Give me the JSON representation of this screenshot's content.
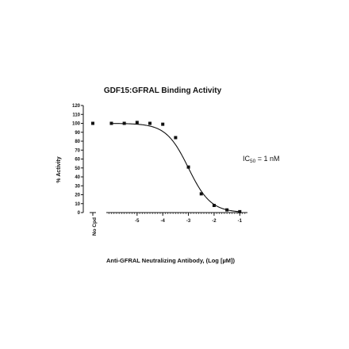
{
  "chart_data": {
    "type": "scatter",
    "title": "GDF15:GFRAL Binding Activity",
    "xlabel": "Anti-GFRAL Neutralizing Antibody, (Log [µM])",
    "ylabel": "% Activity",
    "x_ticks": [
      "-5",
      "-4",
      "-3",
      "-2",
      "-1"
    ],
    "x_range": [
      -6.2,
      -0.7
    ],
    "y_ticks": [
      "0",
      "10",
      "20",
      "30",
      "40",
      "50",
      "60",
      "70",
      "80",
      "90",
      "100",
      "110",
      "120"
    ],
    "ylim": [
      0,
      120
    ],
    "control": {
      "label": "No Cpd",
      "value": 100
    },
    "series": [
      {
        "x": [
          -6.0,
          -5.5,
          -5.0,
          -4.5,
          -4.0,
          -3.5,
          -3.0,
          -2.5,
          -2.0,
          -1.5,
          -1.0
        ],
        "values": [
          100,
          100,
          101,
          100,
          99,
          84,
          51,
          21,
          8,
          3,
          1
        ]
      }
    ],
    "fit": {
      "model": "4PL",
      "top": 100,
      "bottom": 0,
      "log_ic50": -3.0,
      "hill": 1.0
    },
    "annotation": {
      "prefix": "IC",
      "subscript": "50",
      "suffix": " = 1 nM"
    },
    "grid": false
  }
}
